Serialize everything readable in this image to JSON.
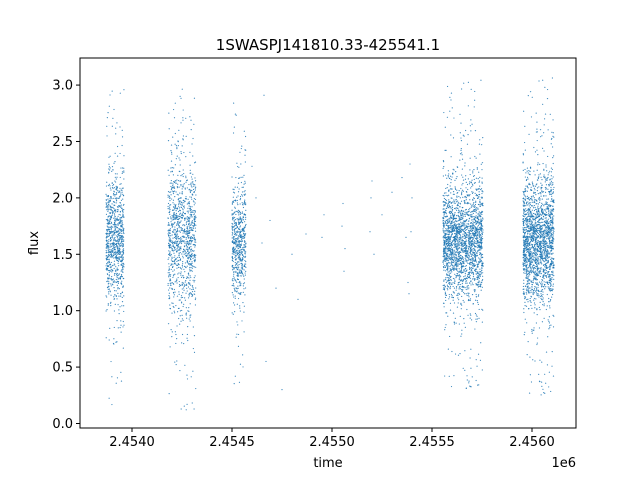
{
  "chart_data": {
    "type": "scatter",
    "title": "1SWASPJ141810.33-425541.1",
    "xlabel": "time",
    "ylabel": "flux",
    "x_offset_label": "1e6",
    "xlim": [
      2453740,
      2456220
    ],
    "ylim": [
      -0.04,
      3.24
    ],
    "x_ticks": [
      2454000,
      2454500,
      2455000,
      2455500,
      2456000
    ],
    "x_tick_labels": [
      "2.4540",
      "2.4545",
      "2.4550",
      "2.4555",
      "2.4560"
    ],
    "y_ticks": [
      0.0,
      0.5,
      1.0,
      1.5,
      2.0,
      2.5,
      3.0
    ],
    "y_tick_labels": [
      "0.0",
      "0.5",
      "1.0",
      "1.5",
      "2.0",
      "2.5",
      "3.0"
    ],
    "grid": false,
    "legend": "none",
    "point_color": "#1f77b4",
    "clusters": [
      {
        "x_start": 2453870,
        "x_end": 2453960,
        "center": 1.62,
        "spread": 0.27,
        "y_min": 0.12,
        "y_max": 3.0,
        "count": 900
      },
      {
        "x_start": 2454180,
        "x_end": 2454320,
        "center": 1.65,
        "spread": 0.3,
        "y_min": 0.12,
        "y_max": 2.97,
        "count": 1100
      },
      {
        "x_start": 2454500,
        "x_end": 2454570,
        "center": 1.58,
        "spread": 0.22,
        "y_min": 0.22,
        "y_max": 2.9,
        "count": 600
      },
      {
        "x_start": 2455555,
        "x_end": 2455755,
        "center": 1.62,
        "spread": 0.23,
        "y_min": 0.28,
        "y_max": 3.05,
        "count": 2200
      },
      {
        "x_start": 2455955,
        "x_end": 2456110,
        "center": 1.62,
        "spread": 0.25,
        "y_min": 0.22,
        "y_max": 3.07,
        "count": 2000
      }
    ],
    "sparse_points": [
      {
        "x": 2454600,
        "y": 2.28
      },
      {
        "x": 2454620,
        "y": 2.0
      },
      {
        "x": 2454650,
        "y": 1.6
      },
      {
        "x": 2454660,
        "y": 2.91
      },
      {
        "x": 2454670,
        "y": 0.55
      },
      {
        "x": 2454690,
        "y": 1.8
      },
      {
        "x": 2454720,
        "y": 1.2
      },
      {
        "x": 2454750,
        "y": 0.3
      },
      {
        "x": 2454800,
        "y": 1.5
      },
      {
        "x": 2454830,
        "y": 1.1
      },
      {
        "x": 2454870,
        "y": 1.68
      },
      {
        "x": 2454950,
        "y": 1.65
      },
      {
        "x": 2454960,
        "y": 1.85
      },
      {
        "x": 2455050,
        "y": 1.75
      },
      {
        "x": 2455055,
        "y": 1.95
      },
      {
        "x": 2455060,
        "y": 1.35
      },
      {
        "x": 2455065,
        "y": 1.55
      },
      {
        "x": 2455190,
        "y": 1.7
      },
      {
        "x": 2455195,
        "y": 2.0
      },
      {
        "x": 2455200,
        "y": 2.15
      },
      {
        "x": 2455210,
        "y": 1.5
      },
      {
        "x": 2455250,
        "y": 1.85
      },
      {
        "x": 2455300,
        "y": 2.05
      },
      {
        "x": 2455350,
        "y": 2.18
      },
      {
        "x": 2455370,
        "y": 1.65
      },
      {
        "x": 2455380,
        "y": 1.25
      },
      {
        "x": 2455385,
        "y": 1.15
      },
      {
        "x": 2455390,
        "y": 2.3
      },
      {
        "x": 2455395,
        "y": 1.7
      },
      {
        "x": 2455400,
        "y": 2.0
      }
    ]
  }
}
